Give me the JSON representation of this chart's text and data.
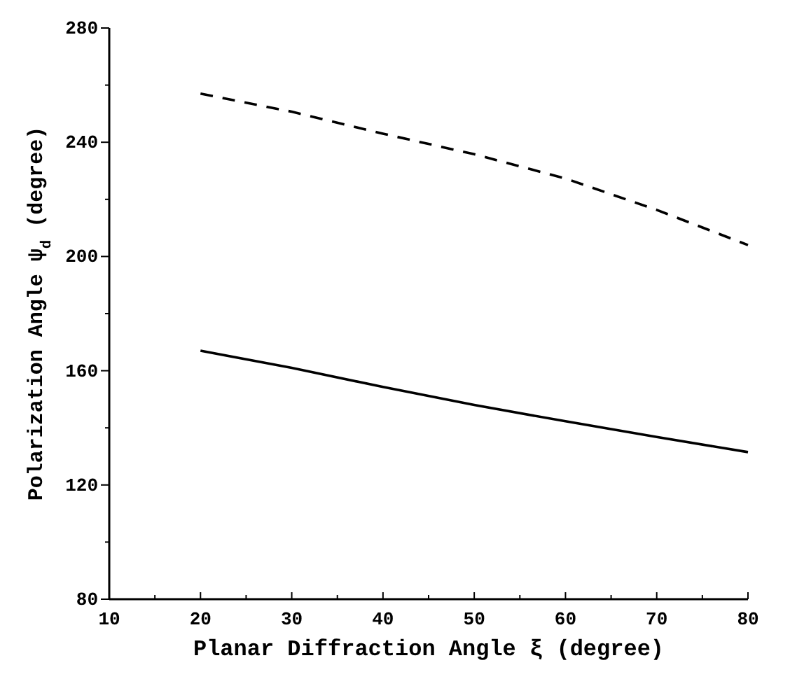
{
  "chart_data": {
    "type": "line",
    "xlabel": "Planar Diffraction Angle ξ  (degree)",
    "ylabel": "Polarization Angle ψ$_{d}$ (degree)",
    "x": [
      20,
      30,
      40,
      50,
      60,
      70,
      80
    ],
    "series": [
      {
        "color": "#000000",
        "line_style": "dashed",
        "values": [
          257,
          250.7,
          243,
          235.8,
          227.3,
          216.3,
          204
        ]
      },
      {
        "color": "#000000",
        "line_style": "solid",
        "values": [
          167,
          161,
          154.3,
          148,
          142.3,
          136.8,
          131.5
        ]
      }
    ],
    "xlim": [
      10,
      80
    ],
    "ylim": [
      80,
      280
    ],
    "xticks": [
      10,
      {
        "value": 15,
        "label": null
      },
      20,
      {
        "value": 25,
        "label": null
      },
      30,
      {
        "value": 35,
        "label": null
      },
      40,
      {
        "value": 45,
        "label": null
      },
      50,
      {
        "value": 55,
        "label": null
      },
      60,
      {
        "value": 65,
        "label": null
      },
      70,
      {
        "value": 75,
        "label": null
      },
      80
    ],
    "yticks": [
      80,
      {
        "value": 100,
        "label": null
      },
      120,
      {
        "value": 140,
        "label": null
      },
      160,
      {
        "value": 180,
        "label": null
      },
      200,
      {
        "value": 220,
        "label": null
      },
      240,
      {
        "value": 260,
        "label": null
      },
      280
    ],
    "grid": false,
    "marker": "none"
  }
}
